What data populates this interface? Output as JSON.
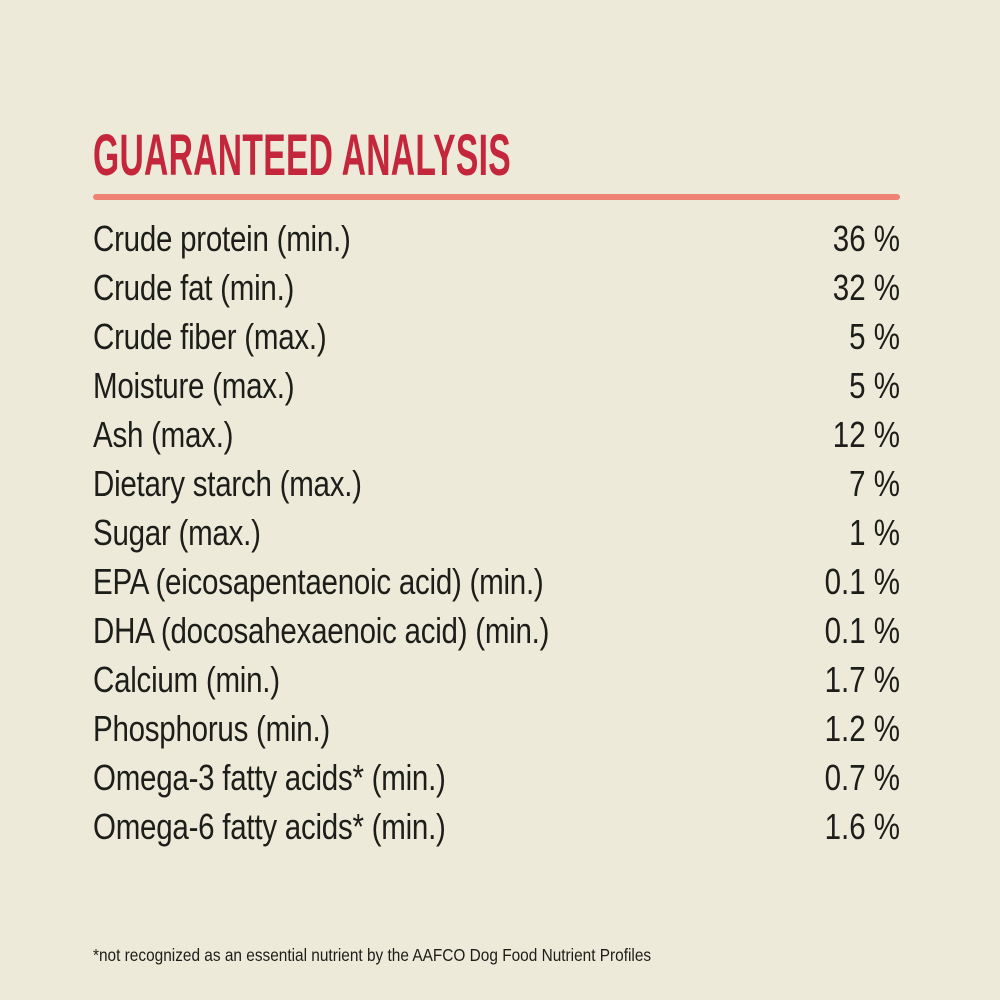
{
  "page": {
    "background_color": "#edead9",
    "heading": "GUARANTEED ANALYSIS",
    "heading_color": "#c4273c",
    "divider_color": "#ee8373",
    "text_color": "#1d1d19",
    "footnote": "*not recognized as an essential nutrient by the AAFCO Dog Food Nutrient Profiles"
  },
  "analysis": {
    "rows": [
      {
        "label": "Crude protein (min.)",
        "value": "36 %"
      },
      {
        "label": "Crude fat (min.)",
        "value": "32 %"
      },
      {
        "label": "Crude fiber (max.)",
        "value": "5 %"
      },
      {
        "label": "Moisture (max.)",
        "value": "5 %"
      },
      {
        "label": "Ash (max.)",
        "value": "12 %"
      },
      {
        "label": "Dietary starch (max.)",
        "value": "7 %"
      },
      {
        "label": "Sugar (max.)",
        "value": "1 %"
      },
      {
        "label": "EPA (eicosapentaenoic acid) (min.)",
        "value": "0.1 %"
      },
      {
        "label": "DHA (docosahexaenoic acid) (min.)",
        "value": "0.1 %"
      },
      {
        "label": "Calcium (min.)",
        "value": "1.7 %"
      },
      {
        "label": "Phosphorus (min.)",
        "value": "1.2 %"
      },
      {
        "label": "Omega-3 fatty acids* (min.)",
        "value": "0.7 %"
      },
      {
        "label": "Omega-6 fatty acids* (min.)",
        "value": "1.6 %"
      }
    ]
  }
}
